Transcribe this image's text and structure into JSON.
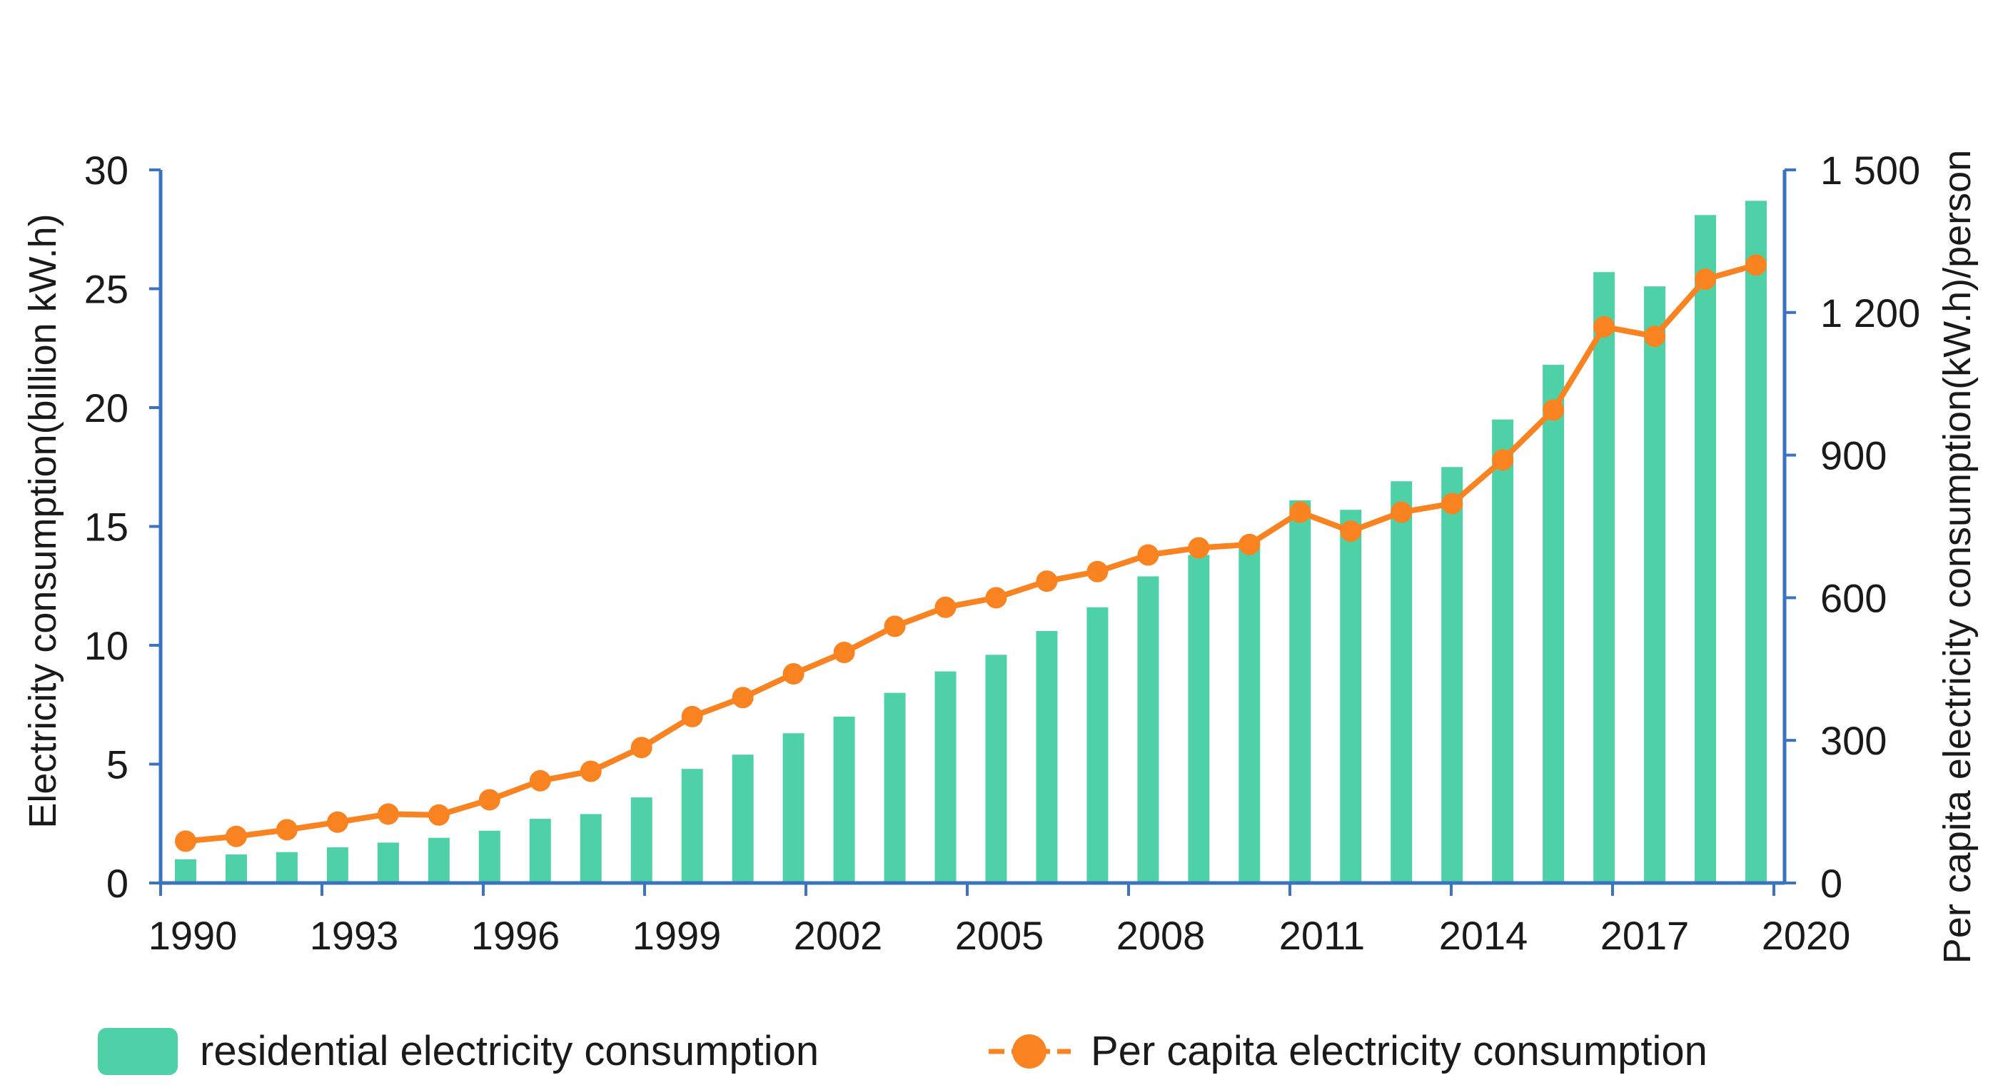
{
  "chart_data": {
    "type": "bar+line",
    "years": [
      1990,
      1991,
      1992,
      1993,
      1994,
      1995,
      1996,
      1997,
      1998,
      1999,
      2000,
      2001,
      2002,
      2003,
      2004,
      2005,
      2006,
      2007,
      2008,
      2009,
      2010,
      2011,
      2012,
      2013,
      2014,
      2015,
      2016,
      2017,
      2018,
      2019,
      2020,
      2021
    ],
    "x_tick_labels": [
      "1990",
      "1993",
      "1996",
      "1999",
      "2002",
      "2005",
      "2008",
      "2011",
      "2014",
      "2017",
      "2020"
    ],
    "x_tick_indices": [
      0,
      3,
      6,
      9,
      12,
      15,
      18,
      21,
      24,
      27,
      30
    ],
    "series": [
      {
        "name": "residential electricity consumption",
        "type": "bar",
        "axis": "left",
        "color": "#4fd1a8",
        "values": [
          1.0,
          1.2,
          1.3,
          1.5,
          1.7,
          1.9,
          2.2,
          2.7,
          2.9,
          3.6,
          4.8,
          5.4,
          6.3,
          7.0,
          8.0,
          8.9,
          9.6,
          10.6,
          11.6,
          12.9,
          13.8,
          14.4,
          16.1,
          15.7,
          16.9,
          17.5,
          19.5,
          21.8,
          25.7,
          25.1,
          28.1,
          28.7
        ]
      },
      {
        "name": "Per capita electricity consumption",
        "type": "line",
        "axis": "right",
        "color": "#f98320",
        "values": [
          88,
          98,
          112,
          128,
          145,
          143,
          175,
          215,
          235,
          285,
          350,
          390,
          440,
          485,
          540,
          580,
          600,
          635,
          655,
          690,
          705,
          712,
          780,
          740,
          780,
          798,
          890,
          995,
          1170,
          1150,
          1270,
          1300
        ]
      }
    ],
    "left_axis": {
      "title": "Electricity consumption(billion kW.h)",
      "range": [
        0,
        30
      ],
      "ticks": [
        0,
        5,
        10,
        15,
        20,
        25,
        30
      ],
      "tick_labels": [
        "0",
        "5",
        "10",
        "15",
        "20",
        "25",
        "30"
      ]
    },
    "right_axis": {
      "title": "Per capita electricity consumption(kW.h)/person",
      "range": [
        0,
        1500
      ],
      "ticks": [
        0,
        300,
        600,
        900,
        1200,
        1500
      ],
      "tick_labels": [
        "0",
        "300",
        "600",
        "900",
        "1 200",
        "1 500"
      ]
    },
    "legend": {
      "position": "bottom",
      "entries": [
        "residential electricity consumption",
        "Per capita electricity consumption"
      ]
    },
    "axis_color": "#3a73c0"
  }
}
